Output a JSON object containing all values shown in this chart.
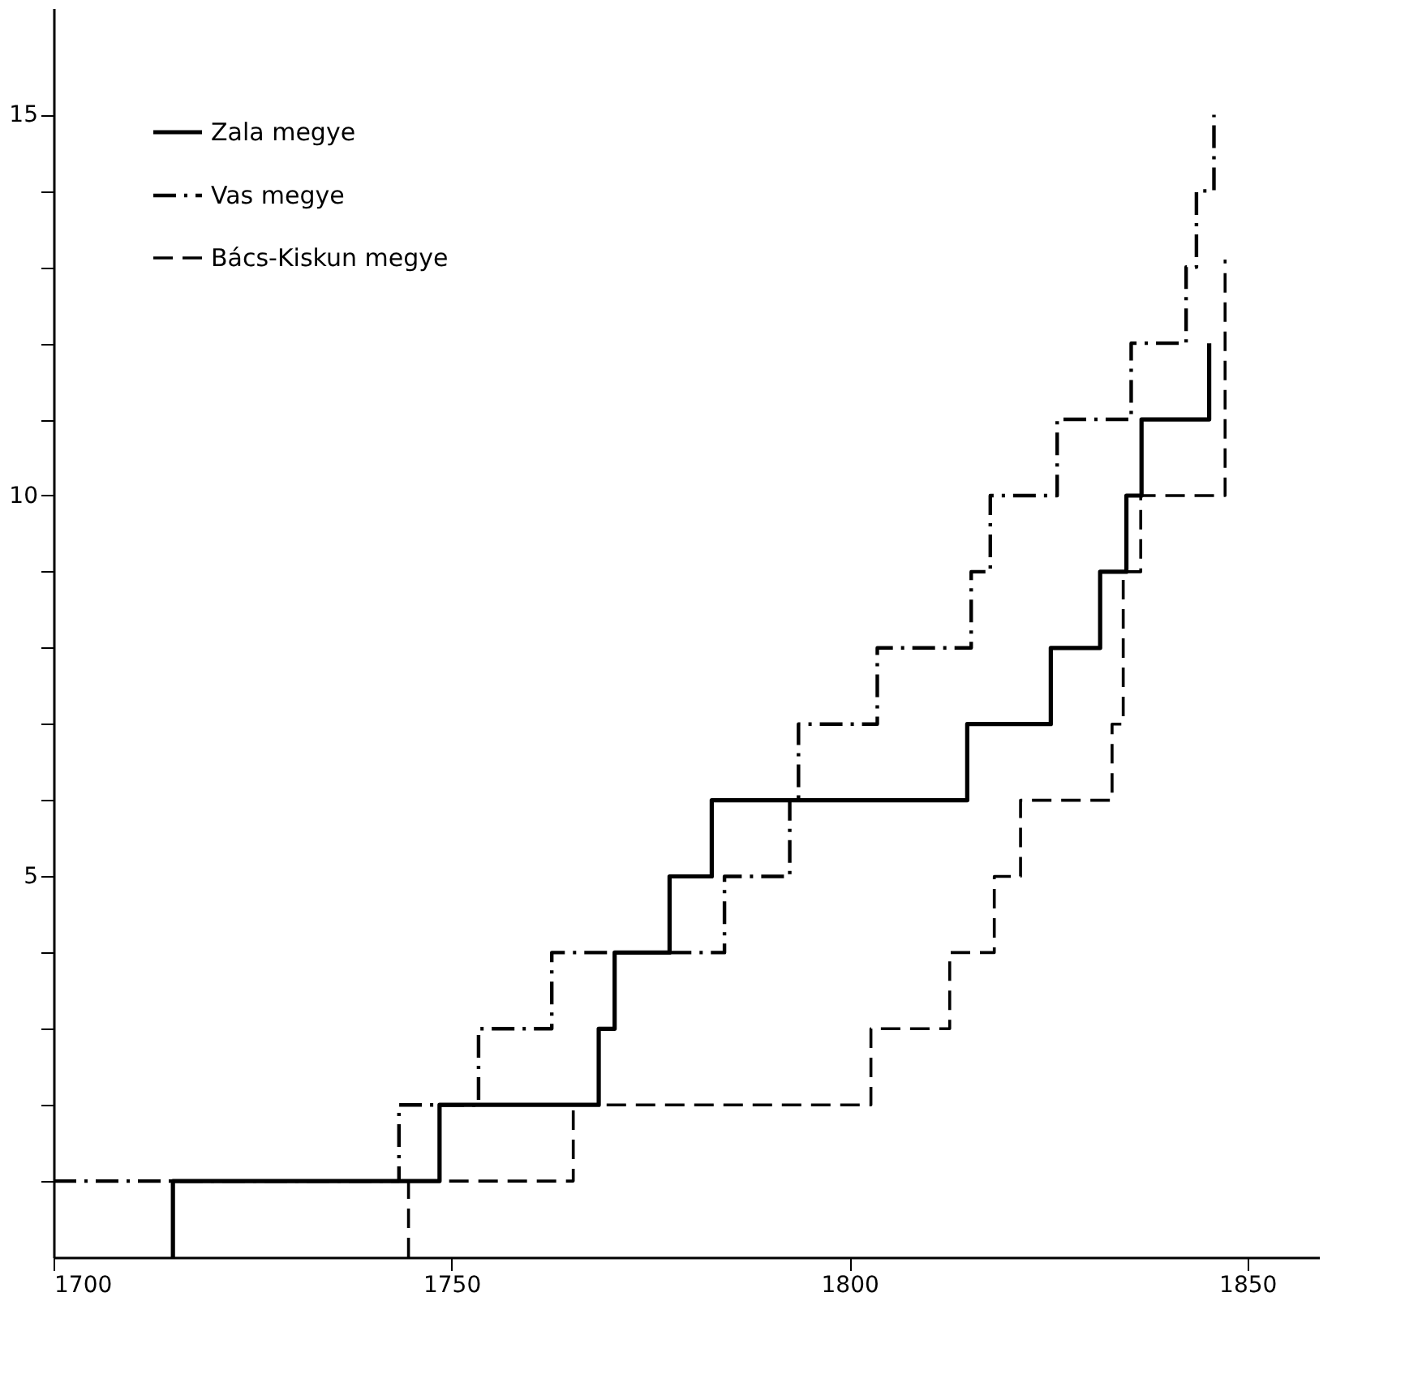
{
  "chart_data": {
    "type": "step",
    "xlim": [
      1700,
      1859
    ],
    "ylim": [
      0,
      16.4
    ],
    "xticks": [
      1700,
      1750,
      1800,
      1850
    ],
    "yticks": [
      {
        "value": 1,
        "label": null
      },
      {
        "value": 2,
        "label": null
      },
      {
        "value": 3,
        "label": null
      },
      {
        "value": 4,
        "label": null
      },
      5,
      {
        "value": 6,
        "label": null
      },
      {
        "value": 7,
        "label": null
      },
      {
        "value": 8,
        "label": null
      },
      {
        "value": 9,
        "label": null
      },
      10,
      {
        "value": 11,
        "label": null
      },
      {
        "value": 12,
        "label": null
      },
      {
        "value": 13,
        "label": null
      },
      {
        "value": 14,
        "label": null
      },
      15
    ],
    "grid": false,
    "legend": "top left",
    "marker": "none",
    "series": [
      {
        "name": "Zala megye",
        "color": "#000000",
        "line_style": "solid",
        "x": [
          1715,
          1715,
          1748.5,
          1768.5,
          1770.5,
          1777.4,
          1782.7,
          1814.8,
          1825.3,
          1831.5,
          1834.8,
          1836.7,
          1845.2
        ],
        "values": [
          0,
          1,
          2,
          3,
          4,
          5,
          6,
          7,
          8,
          9,
          10,
          11,
          12
        ]
      },
      {
        "name": "Vas megye",
        "color": "#000000",
        "line_style": "dashdot",
        "x": [
          1700,
          1743.4,
          1753.4,
          1762.6,
          1784.3,
          1792.5,
          1793.6,
          1803.5,
          1815.3,
          1817.7,
          1826.1,
          1835.4,
          1842.3,
          1843.6,
          1845.8
        ],
        "values": [
          1,
          2,
          3,
          4,
          5,
          6,
          7,
          8,
          9,
          10,
          11,
          12,
          13,
          14,
          15
        ]
      },
      {
        "name": "Bács-Kiskun megye",
        "color": "#000000",
        "line_style": "dashed",
        "x": [
          1744.6,
          1744.6,
          1765.3,
          1802.7,
          1812.6,
          1818.2,
          1821.5,
          1833.0,
          1834.4,
          1836.6,
          1847.2
        ],
        "values": [
          0,
          1,
          2,
          3,
          4,
          5,
          6,
          7,
          9,
          10,
          13.1
        ]
      }
    ]
  }
}
